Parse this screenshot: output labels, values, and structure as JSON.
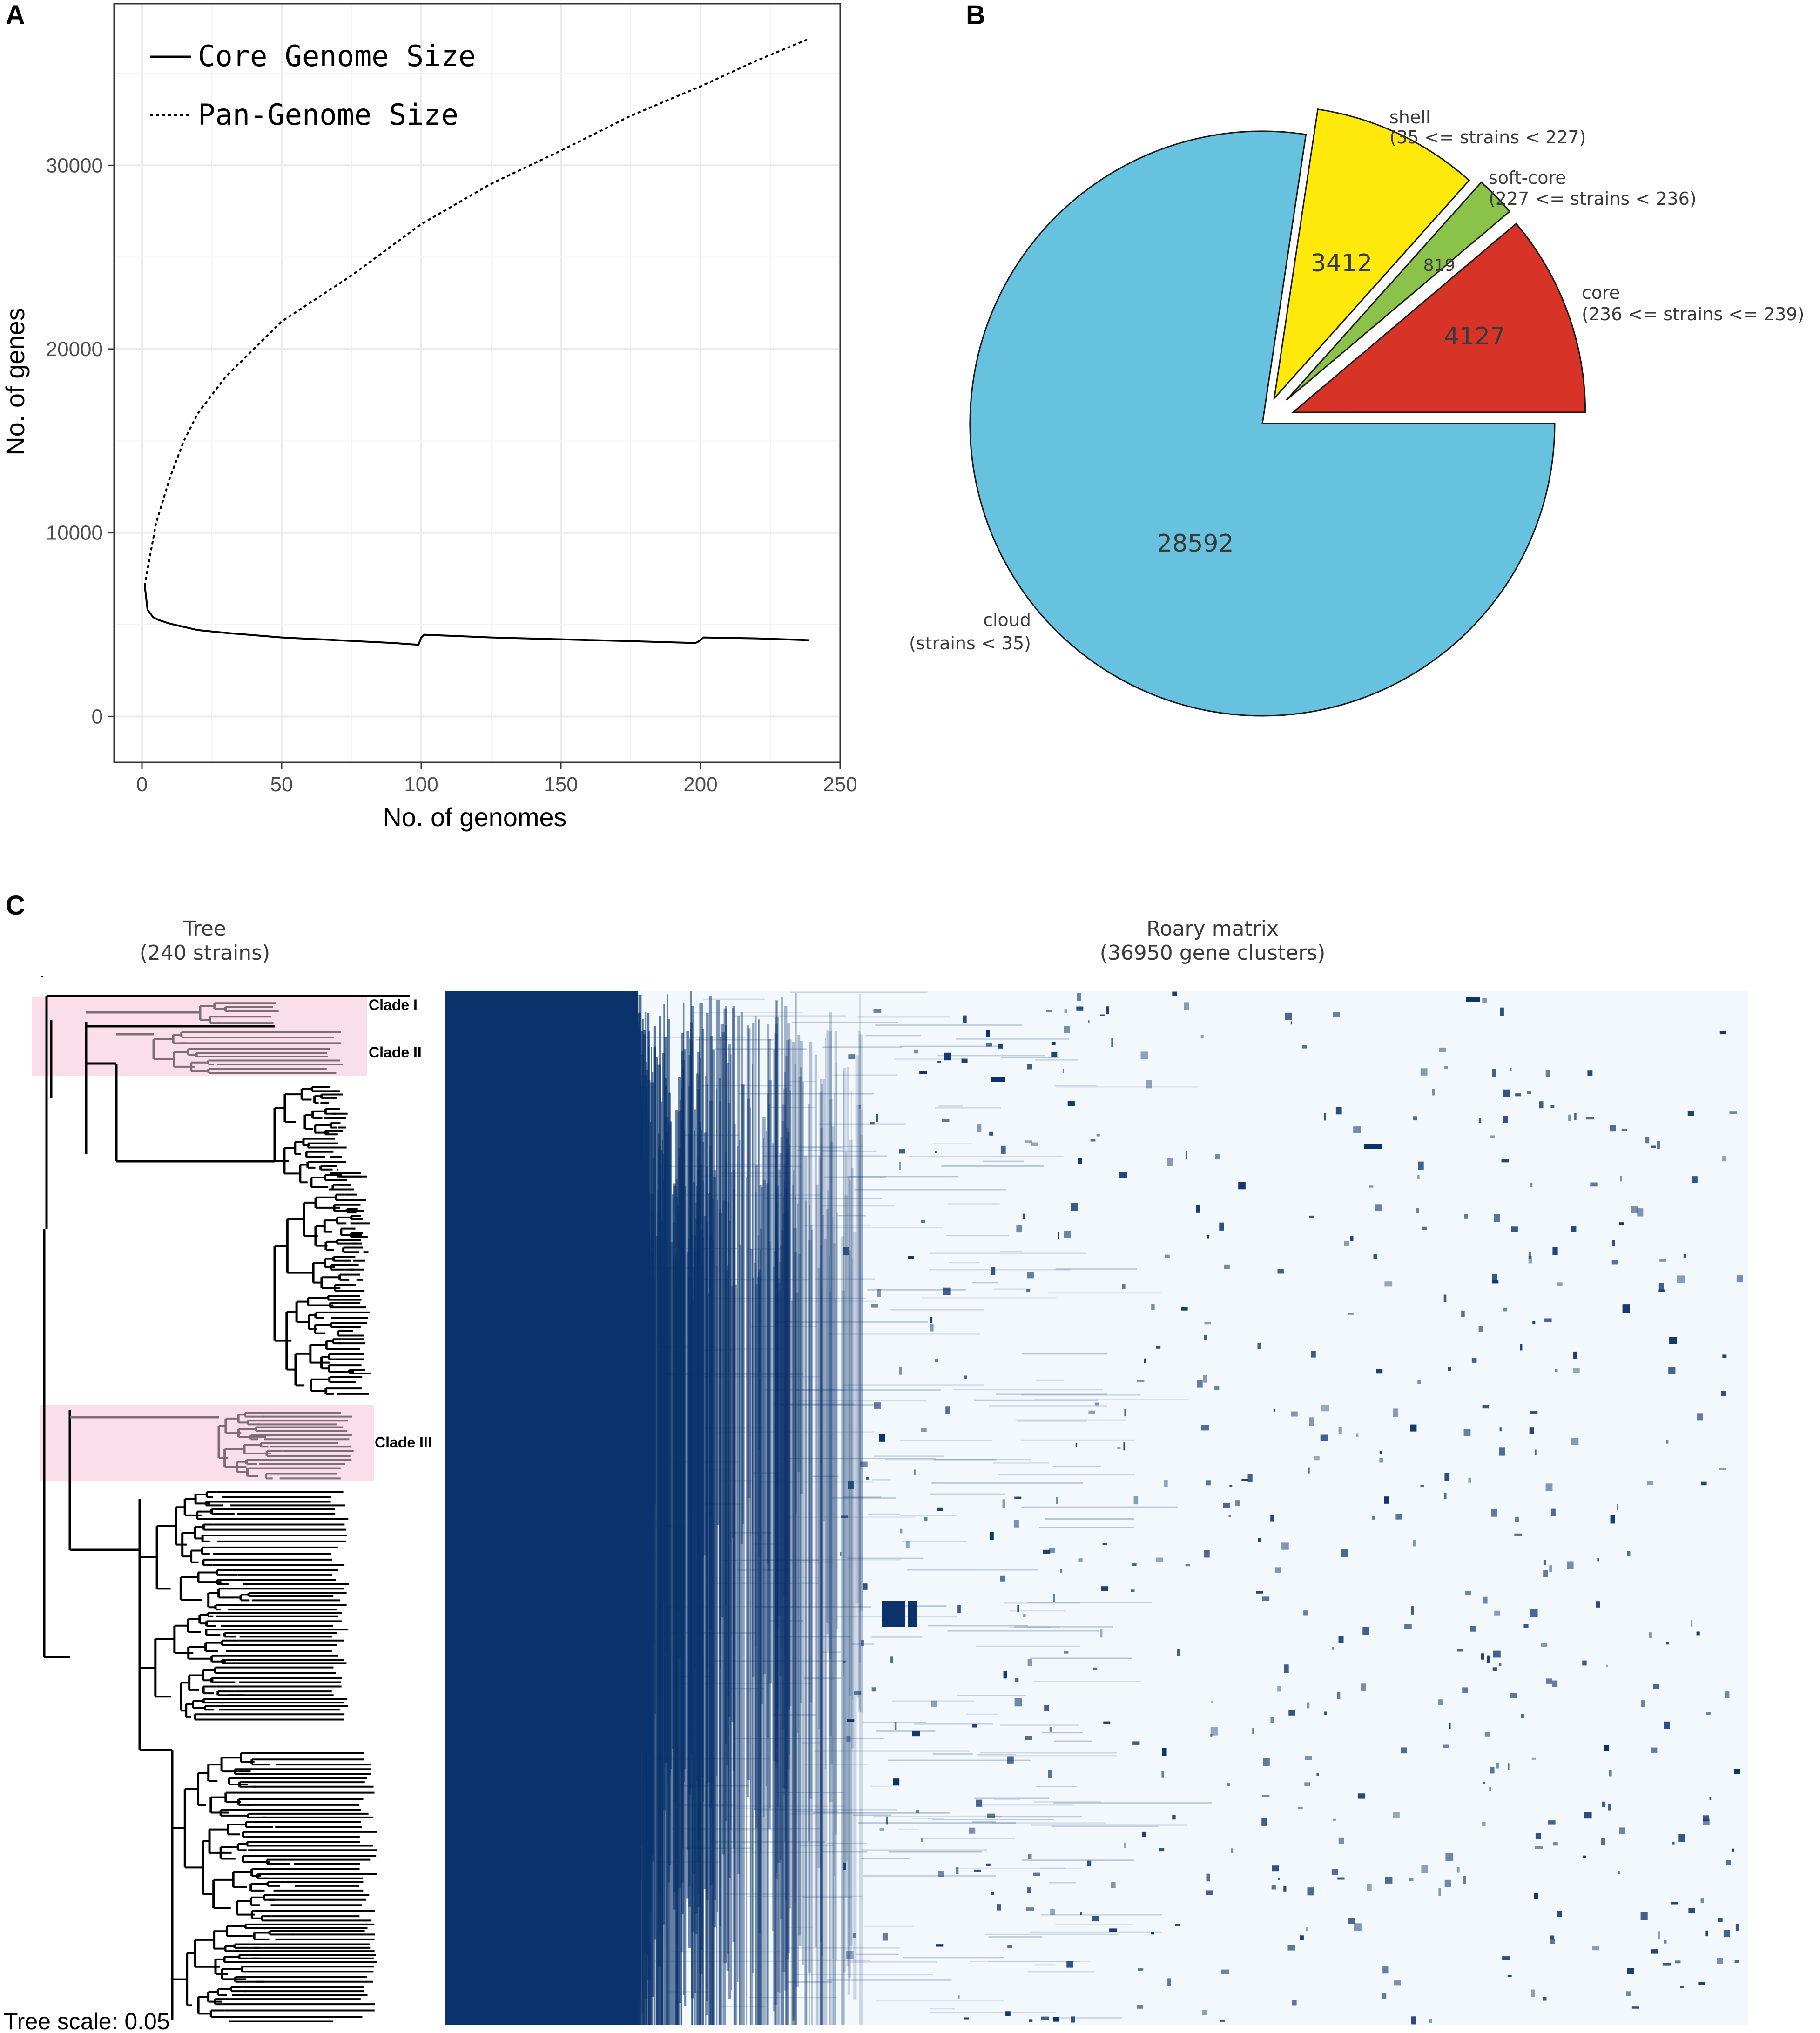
{
  "panels": {
    "a_letter": "A",
    "b_letter": "B",
    "c_letter": "C"
  },
  "chart_data": [
    {
      "type": "line",
      "xlabel": "No. of genomes",
      "ylabel": "No. of genes",
      "xlim": [
        -10,
        250
      ],
      "ylim": [
        -2500,
        38800
      ],
      "xticks": [
        0,
        50,
        100,
        150,
        200,
        250
      ],
      "yticks": [
        0,
        10000,
        20000,
        30000
      ],
      "grid": true,
      "legend_position": "top-left",
      "series": [
        {
          "name": "Core Genome Size",
          "style": "solid",
          "x": [
            1,
            2,
            4,
            6,
            10,
            20,
            30,
            50,
            70,
            90,
            99,
            100,
            101,
            125,
            150,
            175,
            198,
            199,
            201,
            220,
            239
          ],
          "y": [
            7100,
            5800,
            5400,
            5250,
            5050,
            4700,
            4550,
            4300,
            4150,
            4000,
            3900,
            4300,
            4450,
            4300,
            4200,
            4100,
            4000,
            4050,
            4300,
            4250,
            4150
          ]
        },
        {
          "name": "Pan-Genome Size",
          "style": "dashed",
          "x": [
            1,
            2,
            5,
            10,
            15,
            20,
            30,
            40,
            50,
            75,
            100,
            125,
            150,
            175,
            200,
            220,
            239
          ],
          "y": [
            7100,
            8000,
            10500,
            13000,
            15000,
            16500,
            18500,
            20000,
            21500,
            24000,
            26800,
            29000,
            30800,
            32700,
            34300,
            35700,
            36900
          ]
        }
      ]
    },
    {
      "type": "pie",
      "slices": [
        {
          "label": "core",
          "sublabel": "(236 <= strains <= 239)",
          "value": 4127,
          "color": "#d73327",
          "value_text": "4127"
        },
        {
          "label": "soft-core",
          "sublabel": "(227 <= strains < 236)",
          "value": 819,
          "color": "#8bc34a",
          "value_text": "819"
        },
        {
          "label": "shell",
          "sublabel": "(35 <= strains < 227)",
          "value": 3412,
          "color": "#ffe90a",
          "value_text": "3412"
        },
        {
          "label": "cloud",
          "sublabel": "(strains < 35)",
          "value": 28592,
          "color": "#67c2e0",
          "value_text": "28592"
        }
      ]
    },
    {
      "type": "heatmap",
      "tree_title": "Tree",
      "tree_subtitle": "(240 strains)",
      "matrix_title": "Roary matrix",
      "matrix_subtitle": "(36950 gene clusters)",
      "clades": [
        "Clade I",
        "Clade II",
        "Clade III"
      ],
      "tree_scale_label": "Tree scale: 0.05",
      "strains": 240,
      "gene_clusters": 36950,
      "present_color": "#0b336b",
      "absent_color": "#f3f8fd"
    }
  ]
}
